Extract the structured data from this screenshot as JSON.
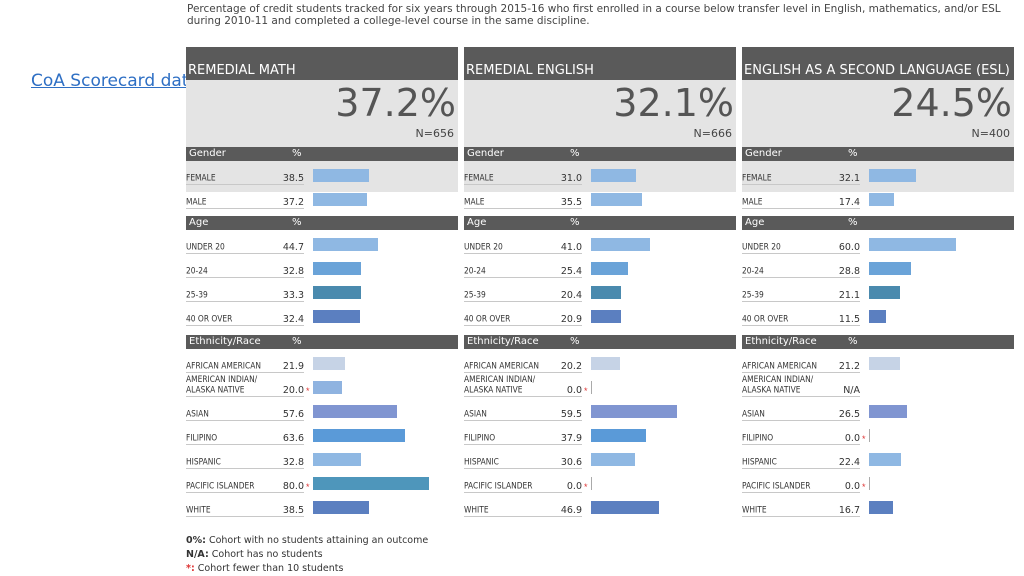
{
  "link": {
    "label": "CoA Scorecard data"
  },
  "header": {
    "note": "Percentage of credit students tracked for six years through 2015-16 who first enrolled in a course below transfer level in English, mathematics, and/or ESL during 2010-11 and completed a college-level course in the same discipline."
  },
  "legend": {
    "items": [
      {
        "key": "0%:",
        "text": " Cohort with no students attaining an outcome"
      },
      {
        "key": "N/A:",
        "text": " Cohort has no students"
      },
      {
        "key": "*:",
        "text": " Cohort fewer than 10 students"
      }
    ]
  },
  "colors": {
    "gender": "#8fb8e3",
    "age": [
      "#8fb8e3",
      "#6aa3d8",
      "#4a8aae",
      "#5b7fc0"
    ],
    "eth": [
      "#c6d3e6",
      "#8fb3e0",
      "#8095d1",
      "#5a9ad8",
      "#8fb8e3",
      "#4e96bb",
      "#5b7fc0"
    ]
  },
  "chart_data": [
    {
      "type": "bar",
      "title": "REMEDIAL MATH",
      "overall": "37.2%",
      "n": "N=656",
      "sections": [
        {
          "title": "Gender",
          "pct_label": "%",
          "rows": [
            {
              "label": "FEMALE",
              "value": 38.5,
              "text": "38.5",
              "star": false
            },
            {
              "label": "MALE",
              "value": 37.2,
              "text": "37.2",
              "star": false
            }
          ]
        },
        {
          "title": "Age",
          "pct_label": "%",
          "rows": [
            {
              "label": "UNDER 20",
              "value": 44.7,
              "text": "44.7",
              "star": false
            },
            {
              "label": "20-24",
              "value": 32.8,
              "text": "32.8",
              "star": false
            },
            {
              "label": "25-39",
              "value": 33.3,
              "text": "33.3",
              "star": false
            },
            {
              "label": "40 OR OVER",
              "value": 32.4,
              "text": "32.4",
              "star": false
            }
          ]
        },
        {
          "title": "Ethnicity/Race",
          "pct_label": "%",
          "rows": [
            {
              "label": "AFRICAN AMERICAN",
              "value": 21.9,
              "text": "21.9",
              "star": false
            },
            {
              "label": "AMERICAN INDIAN/\nALASKA NATIVE",
              "value": 20.0,
              "text": "20.0",
              "star": true
            },
            {
              "label": "ASIAN",
              "value": 57.6,
              "text": "57.6",
              "star": false
            },
            {
              "label": "FILIPINO",
              "value": 63.6,
              "text": "63.6",
              "star": false
            },
            {
              "label": "HISPANIC",
              "value": 32.8,
              "text": "32.8",
              "star": false
            },
            {
              "label": "PACIFIC ISLANDER",
              "value": 80.0,
              "text": "80.0",
              "star": true
            },
            {
              "label": "WHITE",
              "value": 38.5,
              "text": "38.5",
              "star": false
            }
          ]
        }
      ]
    },
    {
      "type": "bar",
      "title": "REMEDIAL ENGLISH",
      "overall": "32.1%",
      "n": "N=666",
      "sections": [
        {
          "title": "Gender",
          "pct_label": "%",
          "rows": [
            {
              "label": "FEMALE",
              "value": 31.0,
              "text": "31.0",
              "star": false
            },
            {
              "label": "MALE",
              "value": 35.5,
              "text": "35.5",
              "star": false
            }
          ]
        },
        {
          "title": "Age",
          "pct_label": "%",
          "rows": [
            {
              "label": "UNDER 20",
              "value": 41.0,
              "text": "41.0",
              "star": false
            },
            {
              "label": "20-24",
              "value": 25.4,
              "text": "25.4",
              "star": false
            },
            {
              "label": "25-39",
              "value": 20.4,
              "text": "20.4",
              "star": false
            },
            {
              "label": "40 OR OVER",
              "value": 20.9,
              "text": "20.9",
              "star": false
            }
          ]
        },
        {
          "title": "Ethnicity/Race",
          "pct_label": "%",
          "rows": [
            {
              "label": "AFRICAN AMERICAN",
              "value": 20.2,
              "text": "20.2",
              "star": false
            },
            {
              "label": "AMERICAN INDIAN/\nALASKA NATIVE",
              "value": 0.0,
              "text": "0.0",
              "star": true
            },
            {
              "label": "ASIAN",
              "value": 59.5,
              "text": "59.5",
              "star": false
            },
            {
              "label": "FILIPINO",
              "value": 37.9,
              "text": "37.9",
              "star": false
            },
            {
              "label": "HISPANIC",
              "value": 30.6,
              "text": "30.6",
              "star": false
            },
            {
              "label": "PACIFIC ISLANDER",
              "value": 0.0,
              "text": "0.0",
              "star": true
            },
            {
              "label": "WHITE",
              "value": 46.9,
              "text": "46.9",
              "star": false
            }
          ]
        }
      ]
    },
    {
      "type": "bar",
      "title": "ENGLISH AS A SECOND LANGUAGE (ESL)",
      "overall": "24.5%",
      "n": "N=400",
      "sections": [
        {
          "title": "Gender",
          "pct_label": "%",
          "rows": [
            {
              "label": "FEMALE",
              "value": 32.1,
              "text": "32.1",
              "star": false
            },
            {
              "label": "MALE",
              "value": 17.4,
              "text": "17.4",
              "star": false
            }
          ]
        },
        {
          "title": "Age",
          "pct_label": "%",
          "rows": [
            {
              "label": "UNDER 20",
              "value": 60.0,
              "text": "60.0",
              "star": false
            },
            {
              "label": "20-24",
              "value": 28.8,
              "text": "28.8",
              "star": false
            },
            {
              "label": "25-39",
              "value": 21.1,
              "text": "21.1",
              "star": false
            },
            {
              "label": "40 OR OVER",
              "value": 11.5,
              "text": "11.5",
              "star": false
            }
          ]
        },
        {
          "title": "Ethnicity/Race",
          "pct_label": "%",
          "rows": [
            {
              "label": "AFRICAN AMERICAN",
              "value": 21.2,
              "text": "21.2",
              "star": false
            },
            {
              "label": "AMERICAN INDIAN/\nALASKA NATIVE",
              "value": null,
              "text": "N/A",
              "star": false
            },
            {
              "label": "ASIAN",
              "value": 26.5,
              "text": "26.5",
              "star": false
            },
            {
              "label": "FILIPINO",
              "value": 0.0,
              "text": "0.0",
              "star": true
            },
            {
              "label": "HISPANIC",
              "value": 22.4,
              "text": "22.4",
              "star": false
            },
            {
              "label": "PACIFIC ISLANDER",
              "value": 0.0,
              "text": "0.0",
              "star": true
            },
            {
              "label": "WHITE",
              "value": 16.7,
              "text": "16.7",
              "star": false
            }
          ]
        }
      ]
    }
  ]
}
